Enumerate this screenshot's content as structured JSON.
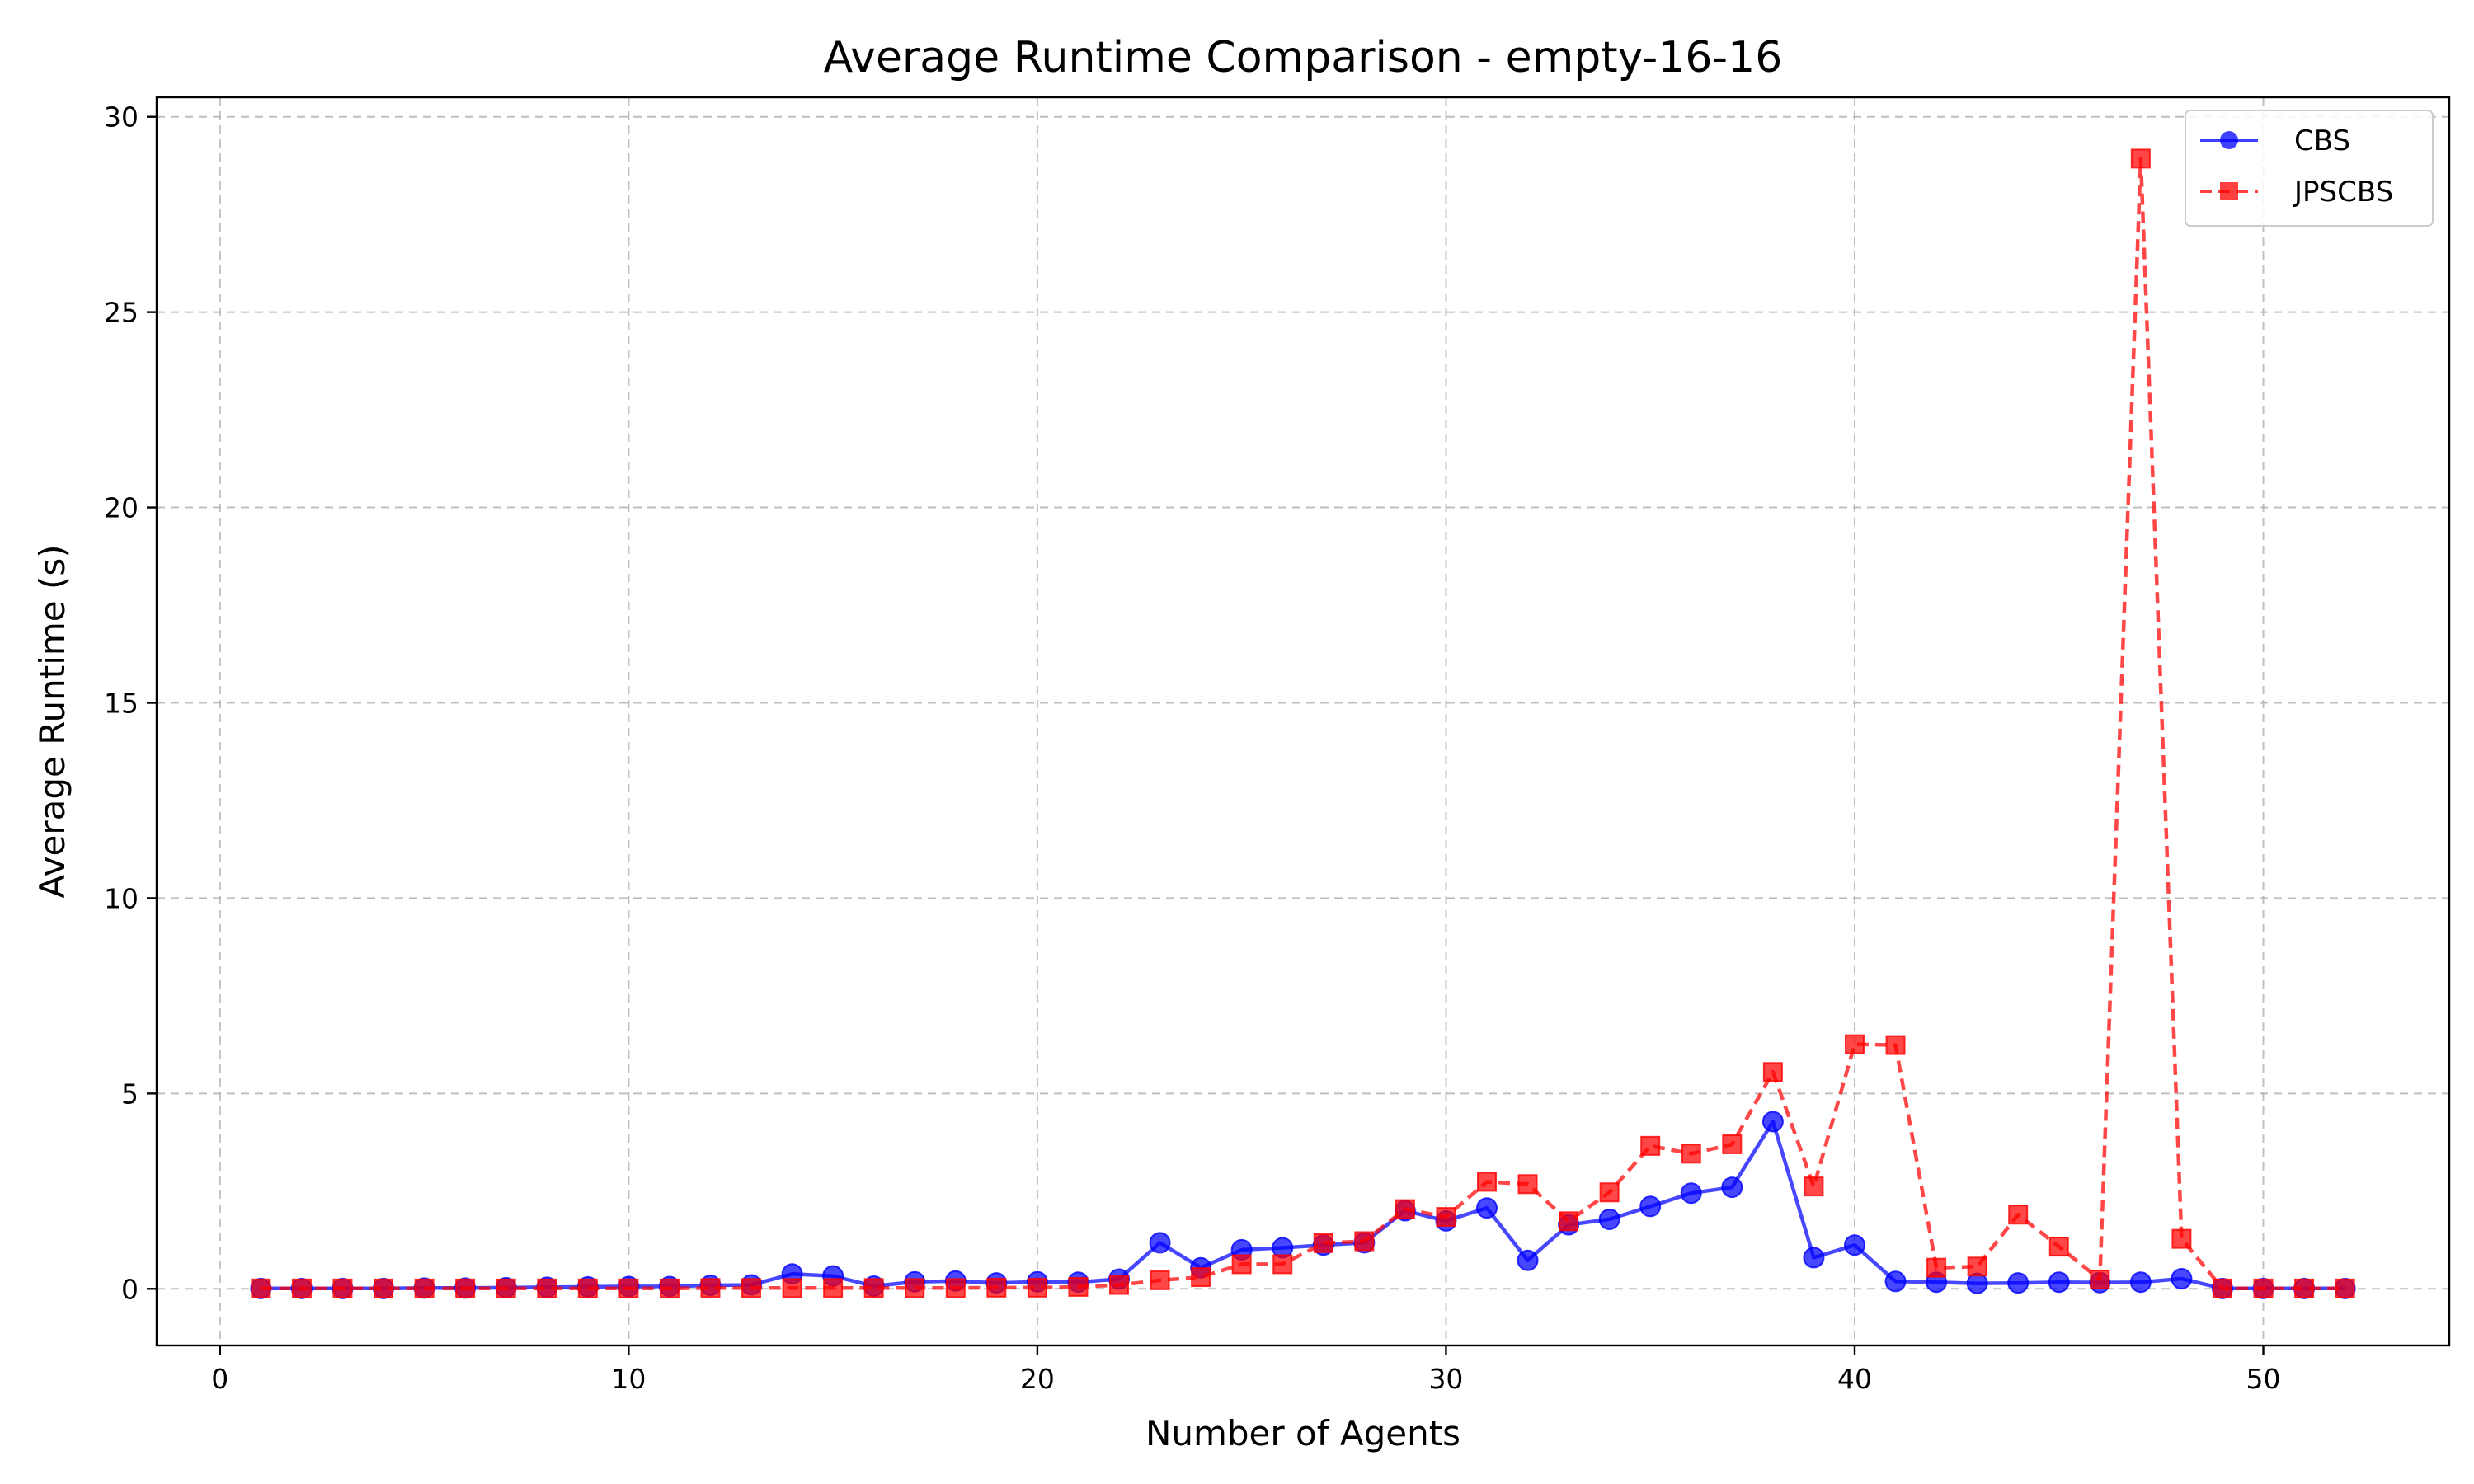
{
  "chart_data": {
    "type": "line",
    "title": "Average Runtime Comparison - empty-16-16",
    "xlabel": "Number of Agents",
    "ylabel": "Average Runtime (s)",
    "xlim": [
      -1.55,
      54.55
    ],
    "ylim": [
      -1.45,
      30.5
    ],
    "xticks": [
      0,
      10,
      20,
      30,
      40,
      50
    ],
    "yticks": [
      0,
      5,
      10,
      15,
      20,
      25,
      30
    ],
    "grid": true,
    "legend": "top-right",
    "x": [
      1,
      2,
      3,
      4,
      5,
      6,
      7,
      8,
      9,
      10,
      11,
      12,
      13,
      14,
      15,
      16,
      17,
      18,
      19,
      20,
      21,
      22,
      23,
      24,
      25,
      26,
      27,
      28,
      29,
      30,
      31,
      32,
      33,
      34,
      35,
      36,
      37,
      38,
      39,
      40,
      41,
      42,
      43,
      44,
      45,
      46,
      47,
      48,
      49,
      50,
      51,
      52
    ],
    "series": [
      {
        "name": "CBS",
        "color": "#0000ff",
        "marker": "circle",
        "linestyle": "solid",
        "values": [
          0.01,
          0.01,
          0.01,
          0.01,
          0.02,
          0.02,
          0.03,
          0.04,
          0.05,
          0.06,
          0.06,
          0.09,
          0.1,
          0.38,
          0.33,
          0.07,
          0.18,
          0.2,
          0.15,
          0.18,
          0.17,
          0.25,
          1.18,
          0.54,
          1.0,
          1.05,
          1.12,
          1.18,
          2.0,
          1.74,
          2.07,
          0.73,
          1.64,
          1.78,
          2.11,
          2.45,
          2.6,
          4.28,
          0.8,
          1.12,
          0.19,
          0.17,
          0.14,
          0.15,
          0.17,
          0.16,
          0.17,
          0.26,
          0.01,
          0.01,
          0.01,
          0.01
        ]
      },
      {
        "name": "JPSCBS",
        "color": "#ff0000",
        "marker": "square",
        "linestyle": "dashed",
        "values": [
          0.01,
          0.01,
          0.01,
          0.01,
          0.01,
          0.01,
          0.01,
          0.01,
          0.01,
          0.01,
          0.01,
          0.02,
          0.02,
          0.02,
          0.02,
          0.02,
          0.02,
          0.02,
          0.03,
          0.03,
          0.05,
          0.1,
          0.22,
          0.3,
          0.63,
          0.63,
          1.17,
          1.22,
          2.04,
          1.84,
          2.74,
          2.68,
          1.73,
          2.47,
          3.66,
          3.46,
          3.7,
          5.55,
          2.62,
          6.26,
          6.24,
          0.54,
          0.57,
          1.9,
          1.08,
          0.24,
          28.93,
          1.28,
          0.01,
          0.01,
          0.01,
          0.01
        ]
      }
    ]
  }
}
